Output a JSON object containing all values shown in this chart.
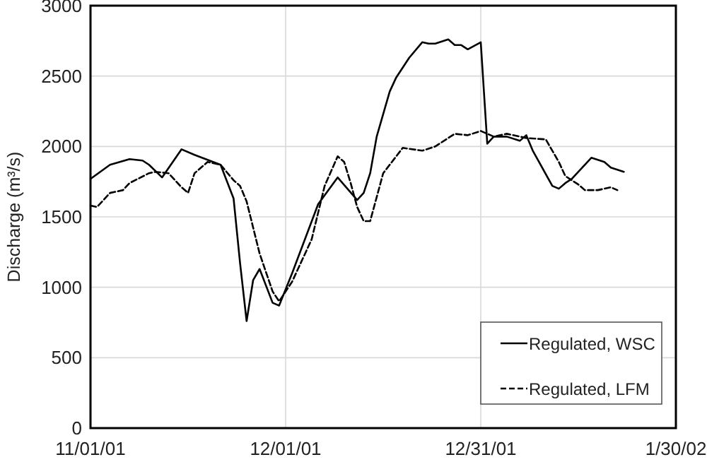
{
  "chart_data": {
    "type": "line",
    "ylabel": "Discharge  (m³/s)",
    "xlim": [
      "2001-11-01",
      "2002-01-30"
    ],
    "xticks": [
      {
        "value": "2001-11-01",
        "label": "11/01/01"
      },
      {
        "value": "2001-12-01",
        "label": "12/01/01"
      },
      {
        "value": "2001-12-31",
        "label": "12/31/01"
      },
      {
        "value": "2002-01-30",
        "label": "1/30/02"
      }
    ],
    "ylim": [
      0,
      3000
    ],
    "yticks": [
      0,
      500,
      1000,
      1500,
      2000,
      2500,
      3000
    ],
    "grid": true,
    "legend": "bottom right",
    "series": [
      {
        "name": "Regulated, WSC",
        "color": "#000000",
        "line_style": "solid",
        "x": [
          "2001-11-01",
          "2001-11-04",
          "2001-11-07",
          "2001-11-09",
          "2001-11-10",
          "2001-11-12",
          "2001-11-15",
          "2001-11-17",
          "2001-11-21",
          "2001-11-23",
          "2001-11-24",
          "2001-11-25",
          "2001-11-26",
          "2001-11-27",
          "2001-11-29",
          "2001-11-30",
          "2001-12-02",
          "2001-12-06",
          "2001-12-09",
          "2001-12-12",
          "2001-12-13",
          "2001-12-14",
          "2001-12-15",
          "2001-12-17",
          "2001-12-18",
          "2001-12-20",
          "2001-12-22",
          "2001-12-23",
          "2001-12-24",
          "2001-12-26",
          "2001-12-27",
          "2001-12-28",
          "2001-12-29",
          "2001-12-31",
          "2002-01-01",
          "2002-01-02",
          "2002-01-04",
          "2002-01-06",
          "2002-01-07",
          "2002-01-08",
          "2002-01-11",
          "2002-01-12",
          "2002-01-13",
          "2002-01-14",
          "2002-01-17",
          "2002-01-19",
          "2002-01-20",
          "2002-01-22"
        ],
        "values": [
          1770,
          1870,
          1910,
          1900,
          1870,
          1780,
          1980,
          1940,
          1870,
          1630,
          1170,
          760,
          1050,
          1130,
          890,
          870,
          1100,
          1590,
          1780,
          1620,
          1670,
          1810,
          2070,
          2390,
          2490,
          2630,
          2740,
          2730,
          2730,
          2760,
          2720,
          2720,
          2690,
          2740,
          2020,
          2070,
          2070,
          2040,
          2080,
          1970,
          1720,
          1700,
          1740,
          1770,
          1920,
          1890,
          1850,
          1820
        ]
      },
      {
        "name": "Regulated, LFM",
        "color": "#000000",
        "line_style": "dashed",
        "x": [
          "2001-11-01",
          "2001-11-02",
          "2001-11-04",
          "2001-11-06",
          "2001-11-07",
          "2001-11-10",
          "2001-11-11",
          "2001-11-13",
          "2001-11-15",
          "2001-11-16",
          "2001-11-17",
          "2001-11-19",
          "2001-11-21",
          "2001-11-23",
          "2001-11-24",
          "2001-11-25",
          "2001-11-27",
          "2001-11-29",
          "2001-11-30",
          "2001-12-02",
          "2001-12-03",
          "2001-12-05",
          "2001-12-07",
          "2001-12-09",
          "2001-12-10",
          "2001-12-11",
          "2001-12-12",
          "2001-12-13",
          "2001-12-14",
          "2001-12-15",
          "2001-12-16",
          "2001-12-19",
          "2001-12-22",
          "2001-12-24",
          "2001-12-27",
          "2001-12-29",
          "2001-12-31",
          "2002-01-02",
          "2002-01-04",
          "2002-01-07",
          "2002-01-10",
          "2002-01-12",
          "2002-01-13",
          "2002-01-15",
          "2002-01-16",
          "2002-01-18",
          "2002-01-20",
          "2002-01-21"
        ],
        "values": [
          1580,
          1570,
          1670,
          1690,
          1740,
          1810,
          1820,
          1810,
          1710,
          1670,
          1810,
          1890,
          1870,
          1760,
          1720,
          1610,
          1240,
          970,
          900,
          1040,
          1140,
          1340,
          1720,
          1930,
          1890,
          1740,
          1570,
          1470,
          1470,
          1640,
          1810,
          1990,
          1970,
          2000,
          2090,
          2080,
          2110,
          2070,
          2090,
          2060,
          2050,
          1890,
          1790,
          1730,
          1690,
          1690,
          1710,
          1690
        ]
      }
    ]
  }
}
